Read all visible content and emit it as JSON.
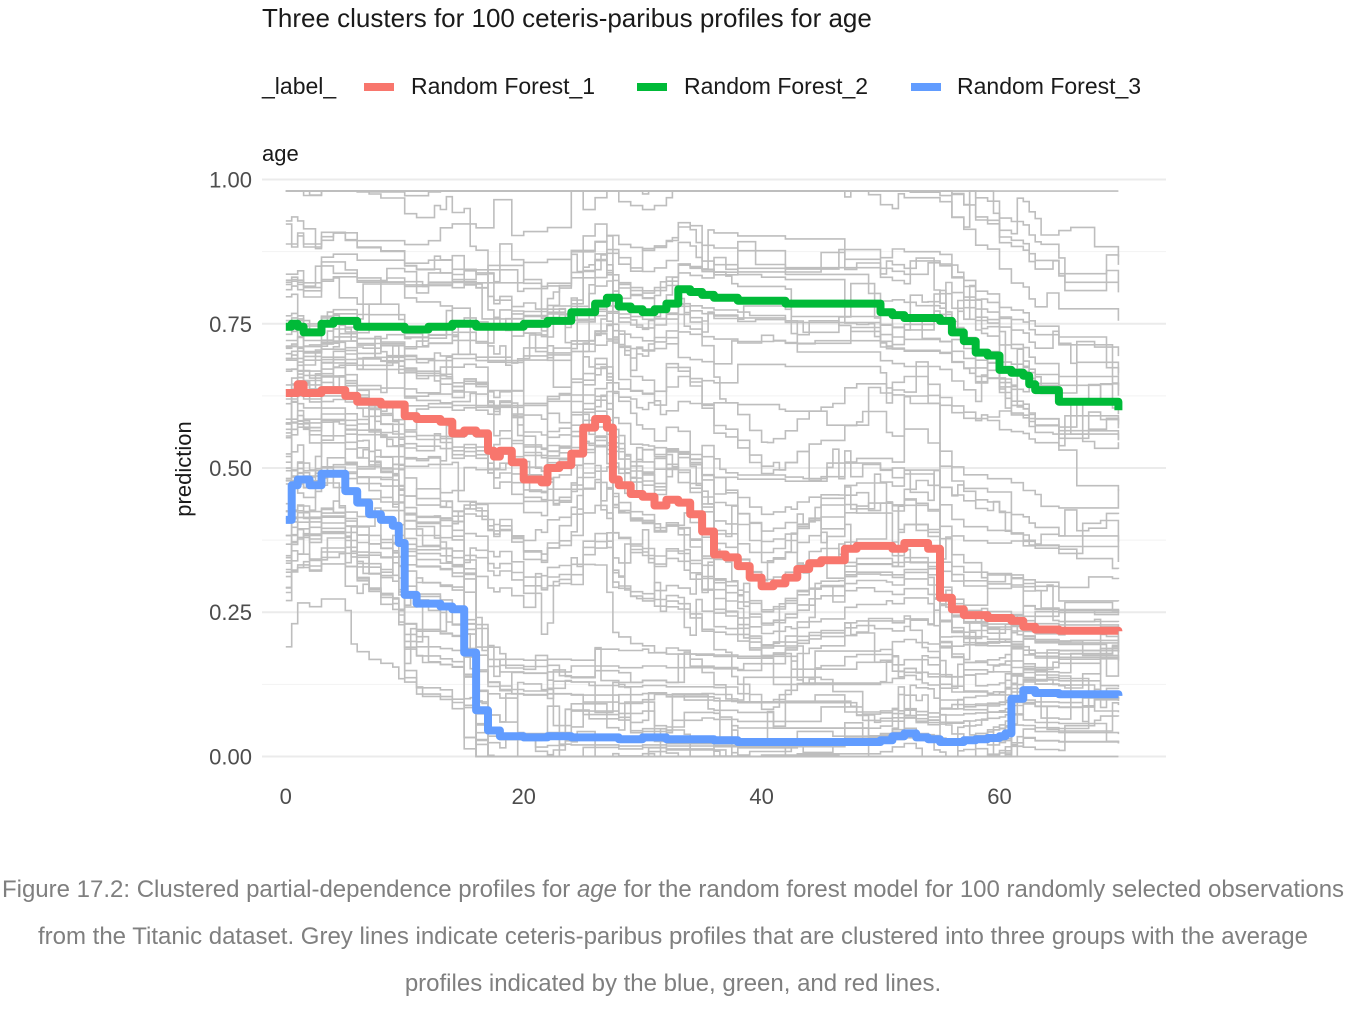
{
  "chart_data": {
    "type": "line",
    "title": "Three clusters for 100 ceteris-paribus profiles for age",
    "legend": {
      "title": "_label_",
      "position": "top",
      "entries": [
        "Random Forest_1",
        "Random Forest_2",
        "Random Forest_3"
      ]
    },
    "facet_label": "age",
    "xlabel": "",
    "ylabel": "prediction",
    "xlim": [
      -2,
      74
    ],
    "ylim": [
      -0.02,
      1.02
    ],
    "x_ticks": [
      "0",
      "20",
      "40",
      "60"
    ],
    "y_ticks": [
      "0.00",
      "0.25",
      "0.50",
      "0.75",
      "1.00"
    ],
    "grid": true,
    "colors": {
      "Random Forest_1": "#f8766d",
      "Random Forest_2": "#00ba38",
      "Random Forest_3": "#619cff",
      "background_profiles": "#bebebe"
    },
    "series": [
      {
        "name": "Random Forest_1",
        "x": [
          0,
          1,
          1.5,
          3,
          4,
          5,
          6,
          8,
          10,
          11,
          13,
          14,
          15,
          16,
          17,
          17.5,
          18,
          19,
          20,
          21.5,
          22,
          23,
          24,
          25,
          26,
          27,
          27.5,
          28,
          29,
          30,
          31,
          32,
          33,
          34,
          35,
          36,
          37,
          38,
          39,
          40,
          41,
          42,
          43,
          44,
          45,
          46,
          47,
          48,
          49,
          50,
          51,
          52,
          53,
          54,
          55,
          56,
          57,
          59,
          61,
          62,
          63,
          65,
          70
        ],
        "y": [
          0.63,
          0.645,
          0.63,
          0.635,
          0.635,
          0.625,
          0.615,
          0.61,
          0.59,
          0.585,
          0.58,
          0.56,
          0.565,
          0.56,
          0.53,
          0.52,
          0.53,
          0.51,
          0.48,
          0.475,
          0.5,
          0.505,
          0.525,
          0.57,
          0.585,
          0.57,
          0.48,
          0.47,
          0.455,
          0.45,
          0.435,
          0.445,
          0.44,
          0.42,
          0.39,
          0.35,
          0.345,
          0.33,
          0.31,
          0.295,
          0.3,
          0.31,
          0.325,
          0.335,
          0.34,
          0.34,
          0.36,
          0.365,
          0.365,
          0.365,
          0.36,
          0.37,
          0.37,
          0.36,
          0.275,
          0.255,
          0.245,
          0.24,
          0.235,
          0.225,
          0.22,
          0.218,
          0.217
        ]
      },
      {
        "name": "Random Forest_2",
        "x": [
          0,
          0.5,
          1,
          1.5,
          2,
          3,
          4,
          5,
          6,
          8,
          10,
          12,
          14,
          16,
          18,
          20,
          22,
          24,
          26,
          27,
          28,
          29,
          30,
          31,
          32,
          33,
          34,
          35,
          36,
          37,
          38,
          40,
          42,
          44,
          46,
          48,
          49,
          50,
          51,
          52,
          53,
          54,
          55,
          56,
          57,
          58,
          59,
          60,
          61,
          62,
          62.5,
          63,
          65,
          70
        ],
        "y": [
          0.745,
          0.75,
          0.745,
          0.735,
          0.735,
          0.75,
          0.755,
          0.755,
          0.745,
          0.745,
          0.74,
          0.745,
          0.75,
          0.745,
          0.745,
          0.75,
          0.755,
          0.77,
          0.785,
          0.795,
          0.78,
          0.775,
          0.77,
          0.775,
          0.785,
          0.81,
          0.805,
          0.8,
          0.795,
          0.795,
          0.79,
          0.79,
          0.785,
          0.785,
          0.785,
          0.785,
          0.785,
          0.77,
          0.765,
          0.76,
          0.76,
          0.76,
          0.755,
          0.735,
          0.72,
          0.7,
          0.695,
          0.67,
          0.665,
          0.66,
          0.645,
          0.635,
          0.615,
          0.6
        ]
      },
      {
        "name": "Random Forest_3",
        "x": [
          0,
          0.5,
          1,
          2,
          3,
          4,
          5,
          6,
          7,
          8,
          9,
          9.5,
          10,
          11,
          12,
          13,
          14,
          15,
          16,
          17,
          18,
          20,
          22,
          24,
          26,
          28,
          30,
          32,
          34,
          36,
          38,
          40,
          42,
          44,
          46,
          48,
          49,
          50,
          51,
          52,
          53,
          54,
          55,
          56,
          57,
          58,
          59,
          60,
          60.5,
          61,
          62,
          63,
          65,
          70
        ],
        "y": [
          0.41,
          0.47,
          0.48,
          0.47,
          0.49,
          0.49,
          0.46,
          0.44,
          0.42,
          0.41,
          0.4,
          0.37,
          0.28,
          0.265,
          0.265,
          0.26,
          0.255,
          0.18,
          0.08,
          0.045,
          0.035,
          0.033,
          0.035,
          0.033,
          0.033,
          0.03,
          0.033,
          0.03,
          0.03,
          0.028,
          0.025,
          0.025,
          0.025,
          0.025,
          0.025,
          0.025,
          0.025,
          0.028,
          0.035,
          0.04,
          0.033,
          0.03,
          0.025,
          0.025,
          0.028,
          0.03,
          0.032,
          0.035,
          0.04,
          0.1,
          0.115,
          0.11,
          0.108,
          0.105
        ]
      }
    ]
  },
  "caption": {
    "prefix": "Figure 17.2: Clustered partial-dependence profiles for ",
    "emph": "age",
    "suffix": " for the random forest model for 100 randomly selected observations from the Titanic dataset. Grey lines indicate ceteris-paribus profiles that are clustered into three groups with the average profiles indicated by the blue, green, and red lines."
  }
}
